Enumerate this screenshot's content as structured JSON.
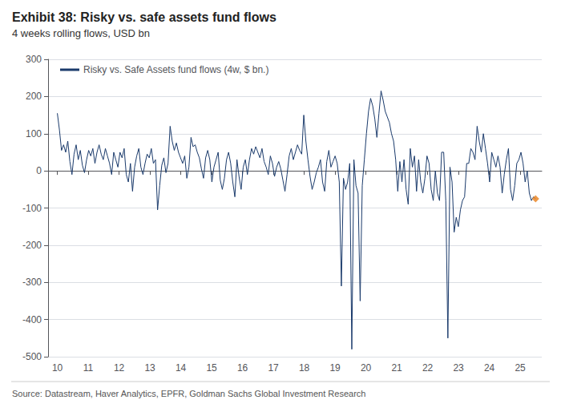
{
  "chart_data": {
    "type": "line",
    "title": "Exhibit 38: Risky vs. safe assets fund flows",
    "subtitle": "4 weeks rolling flows, USD bn",
    "source": "Source: Datastream, Haver Analytics, EPFR, Goldman Sachs Global Investment Research",
    "xlim": [
      9.7,
      25.7
    ],
    "xticks": [
      10,
      11,
      12,
      13,
      14,
      15,
      16,
      17,
      18,
      19,
      20,
      21,
      22,
      23,
      24,
      25
    ],
    "ylim": [
      -500,
      300
    ],
    "yticks": [
      -500,
      -400,
      -300,
      -200,
      -100,
      0,
      100,
      200,
      300
    ],
    "grid": true,
    "legend": "upper left",
    "series": [
      {
        "name": "Risky vs. Safe Assets fund flows (4w, $ bn.)",
        "type": "line",
        "color": "#1a3a6b",
        "x": [
          10,
          10.0677,
          10.1354,
          10.2031,
          10.2707,
          10.3384,
          10.4061,
          10.4738,
          10.5415,
          10.6092,
          10.6769,
          10.7445,
          10.8122,
          10.8799,
          10.9476,
          11.0153,
          11.083,
          11.1507,
          11.2183,
          11.286,
          11.3537,
          11.4214,
          11.4891,
          11.5568,
          11.6245,
          11.6921,
          11.7598,
          11.8275,
          11.8952,
          11.9629,
          12.0306,
          12.0983,
          12.1659,
          12.2336,
          12.3013,
          12.369,
          12.4367,
          12.5044,
          12.5721,
          12.6397,
          12.7074,
          12.7751,
          12.8428,
          12.9105,
          12.9782,
          13.0459,
          13.1135,
          13.1812,
          13.2489,
          13.3166,
          13.3843,
          13.452,
          13.5197,
          13.5873,
          13.655,
          13.7227,
          13.7904,
          13.8581,
          13.9258,
          13.9934,
          14.0611,
          14.1288,
          14.1965,
          14.2642,
          14.3319,
          14.3996,
          14.4672,
          14.5349,
          14.6026,
          14.6703,
          14.738,
          14.8057,
          14.8734,
          14.941,
          15.0087,
          15.0764,
          15.1441,
          15.2118,
          15.2795,
          15.3472,
          15.4148,
          15.4825,
          15.5502,
          15.6179,
          15.6856,
          15.7533,
          15.821,
          15.8886,
          15.9563,
          16.024,
          16.0917,
          16.1594,
          16.2271,
          16.2948,
          16.3624,
          16.4301,
          16.4978,
          16.5655,
          16.6332,
          16.7009,
          16.7686,
          16.8362,
          16.9039,
          16.9716,
          17.0393,
          17.107,
          17.1747,
          17.2424,
          17.31,
          17.3777,
          17.4454,
          17.5131,
          17.5808,
          17.6485,
          17.7162,
          17.7838,
          17.8515,
          17.9192,
          17.9869,
          18.0546,
          18.1223,
          18.19,
          18.2576,
          18.3253,
          18.393,
          18.4607,
          18.5284,
          18.5961,
          18.6638,
          18.7314,
          18.7991,
          18.8668,
          18.9345,
          19.0022,
          19.0699,
          19.1376,
          19.2052,
          19.2729,
          19.3406,
          19.4083,
          19.476,
          19.5437,
          19.6114,
          19.679,
          19.7467,
          19.8144,
          19.8821,
          19.9498,
          20.0175,
          20.0852,
          20.1528,
          20.2205,
          20.2882,
          20.3559,
          20.4236,
          20.4913,
          20.559,
          20.6266,
          20.6943,
          20.762,
          20.8297,
          20.8974,
          20.9651,
          21.0328,
          21.1004,
          21.1681,
          21.2358,
          21.3035,
          21.3712,
          21.4389,
          21.5066,
          21.5742,
          21.6419,
          21.7096,
          21.7773,
          21.845,
          21.9127,
          21.9803,
          22.048,
          22.1157,
          22.1834,
          22.2511,
          22.3188,
          22.3865,
          22.4541,
          22.5218,
          22.5895,
          22.6572,
          22.7249,
          22.7926,
          22.8603,
          22.9279,
          22.9956,
          23.0633,
          23.131,
          23.1987,
          23.2664,
          23.3341,
          23.4017,
          23.4694,
          23.5371,
          23.6048,
          23.6725,
          23.7402,
          23.8079,
          23.8755,
          23.9432,
          24.0109,
          24.0786,
          24.1463,
          24.214,
          24.2817,
          24.3493,
          24.417,
          24.4847,
          24.5524,
          24.6201,
          24.6878,
          24.7555,
          24.8231,
          24.8908,
          24.9585,
          25.0262,
          25.0939,
          25.1616,
          25.2293,
          25.2969,
          25.3646,
          25.4323,
          25.5
        ],
        "values": [
          155,
          110,
          55,
          70,
          50,
          80,
          25,
          -10,
          45,
          70,
          30,
          55,
          15,
          -5,
          30,
          55,
          40,
          60,
          20,
          50,
          70,
          45,
          30,
          60,
          40,
          20,
          -10,
          50,
          30,
          10,
          50,
          35,
          60,
          -10,
          -30,
          20,
          -55,
          10,
          40,
          60,
          10,
          -10,
          20,
          45,
          35,
          60,
          20,
          30,
          -105,
          -40,
          15,
          35,
          -5,
          20,
          120,
          80,
          55,
          75,
          50,
          35,
          20,
          40,
          -20,
          10,
          90,
          65,
          70,
          50,
          35,
          5,
          -20,
          35,
          55,
          30,
          -30,
          10,
          30,
          50,
          -25,
          -50,
          -20,
          30,
          50,
          20,
          -30,
          -70,
          30,
          -15,
          -50,
          10,
          30,
          -10,
          30,
          60,
          45,
          65,
          50,
          35,
          60,
          25,
          10,
          -10,
          40,
          20,
          -15,
          10,
          25,
          5,
          -25,
          -55,
          -10,
          40,
          60,
          30,
          50,
          70,
          55,
          45,
          150,
          80,
          30,
          -15,
          -50,
          -30,
          -5,
          10,
          30,
          -30,
          -55,
          25,
          55,
          10,
          25,
          40,
          20,
          -30,
          -310,
          -20,
          -50,
          -30,
          20,
          -480,
          30,
          -40,
          -60,
          -350,
          -40,
          30,
          100,
          160,
          195,
          175,
          140,
          90,
          155,
          215,
          190,
          160,
          145,
          130,
          100,
          80,
          30,
          -55,
          25,
          -30,
          30,
          -50,
          -90,
          60,
          10,
          40,
          -55,
          30,
          -30,
          -60,
          -20,
          40,
          20,
          -50,
          -80,
          0,
          -60,
          -80,
          50,
          50,
          -80,
          -450,
          10,
          -30,
          -165,
          -125,
          -150,
          -105,
          -80,
          -70,
          20,
          20,
          60,
          50,
          30,
          120,
          80,
          50,
          100,
          60,
          20,
          -30,
          50,
          30,
          10,
          40,
          10,
          -60,
          -10,
          30,
          60,
          -50,
          -80,
          -40,
          20,
          30,
          50,
          20,
          -30,
          0,
          -60,
          -80,
          -70,
          -75
        ]
      },
      {
        "type": "scatter",
        "marker": "diamond",
        "color": "#e8801a",
        "x": [
          25.5
        ],
        "values": [
          -75
        ]
      }
    ]
  }
}
